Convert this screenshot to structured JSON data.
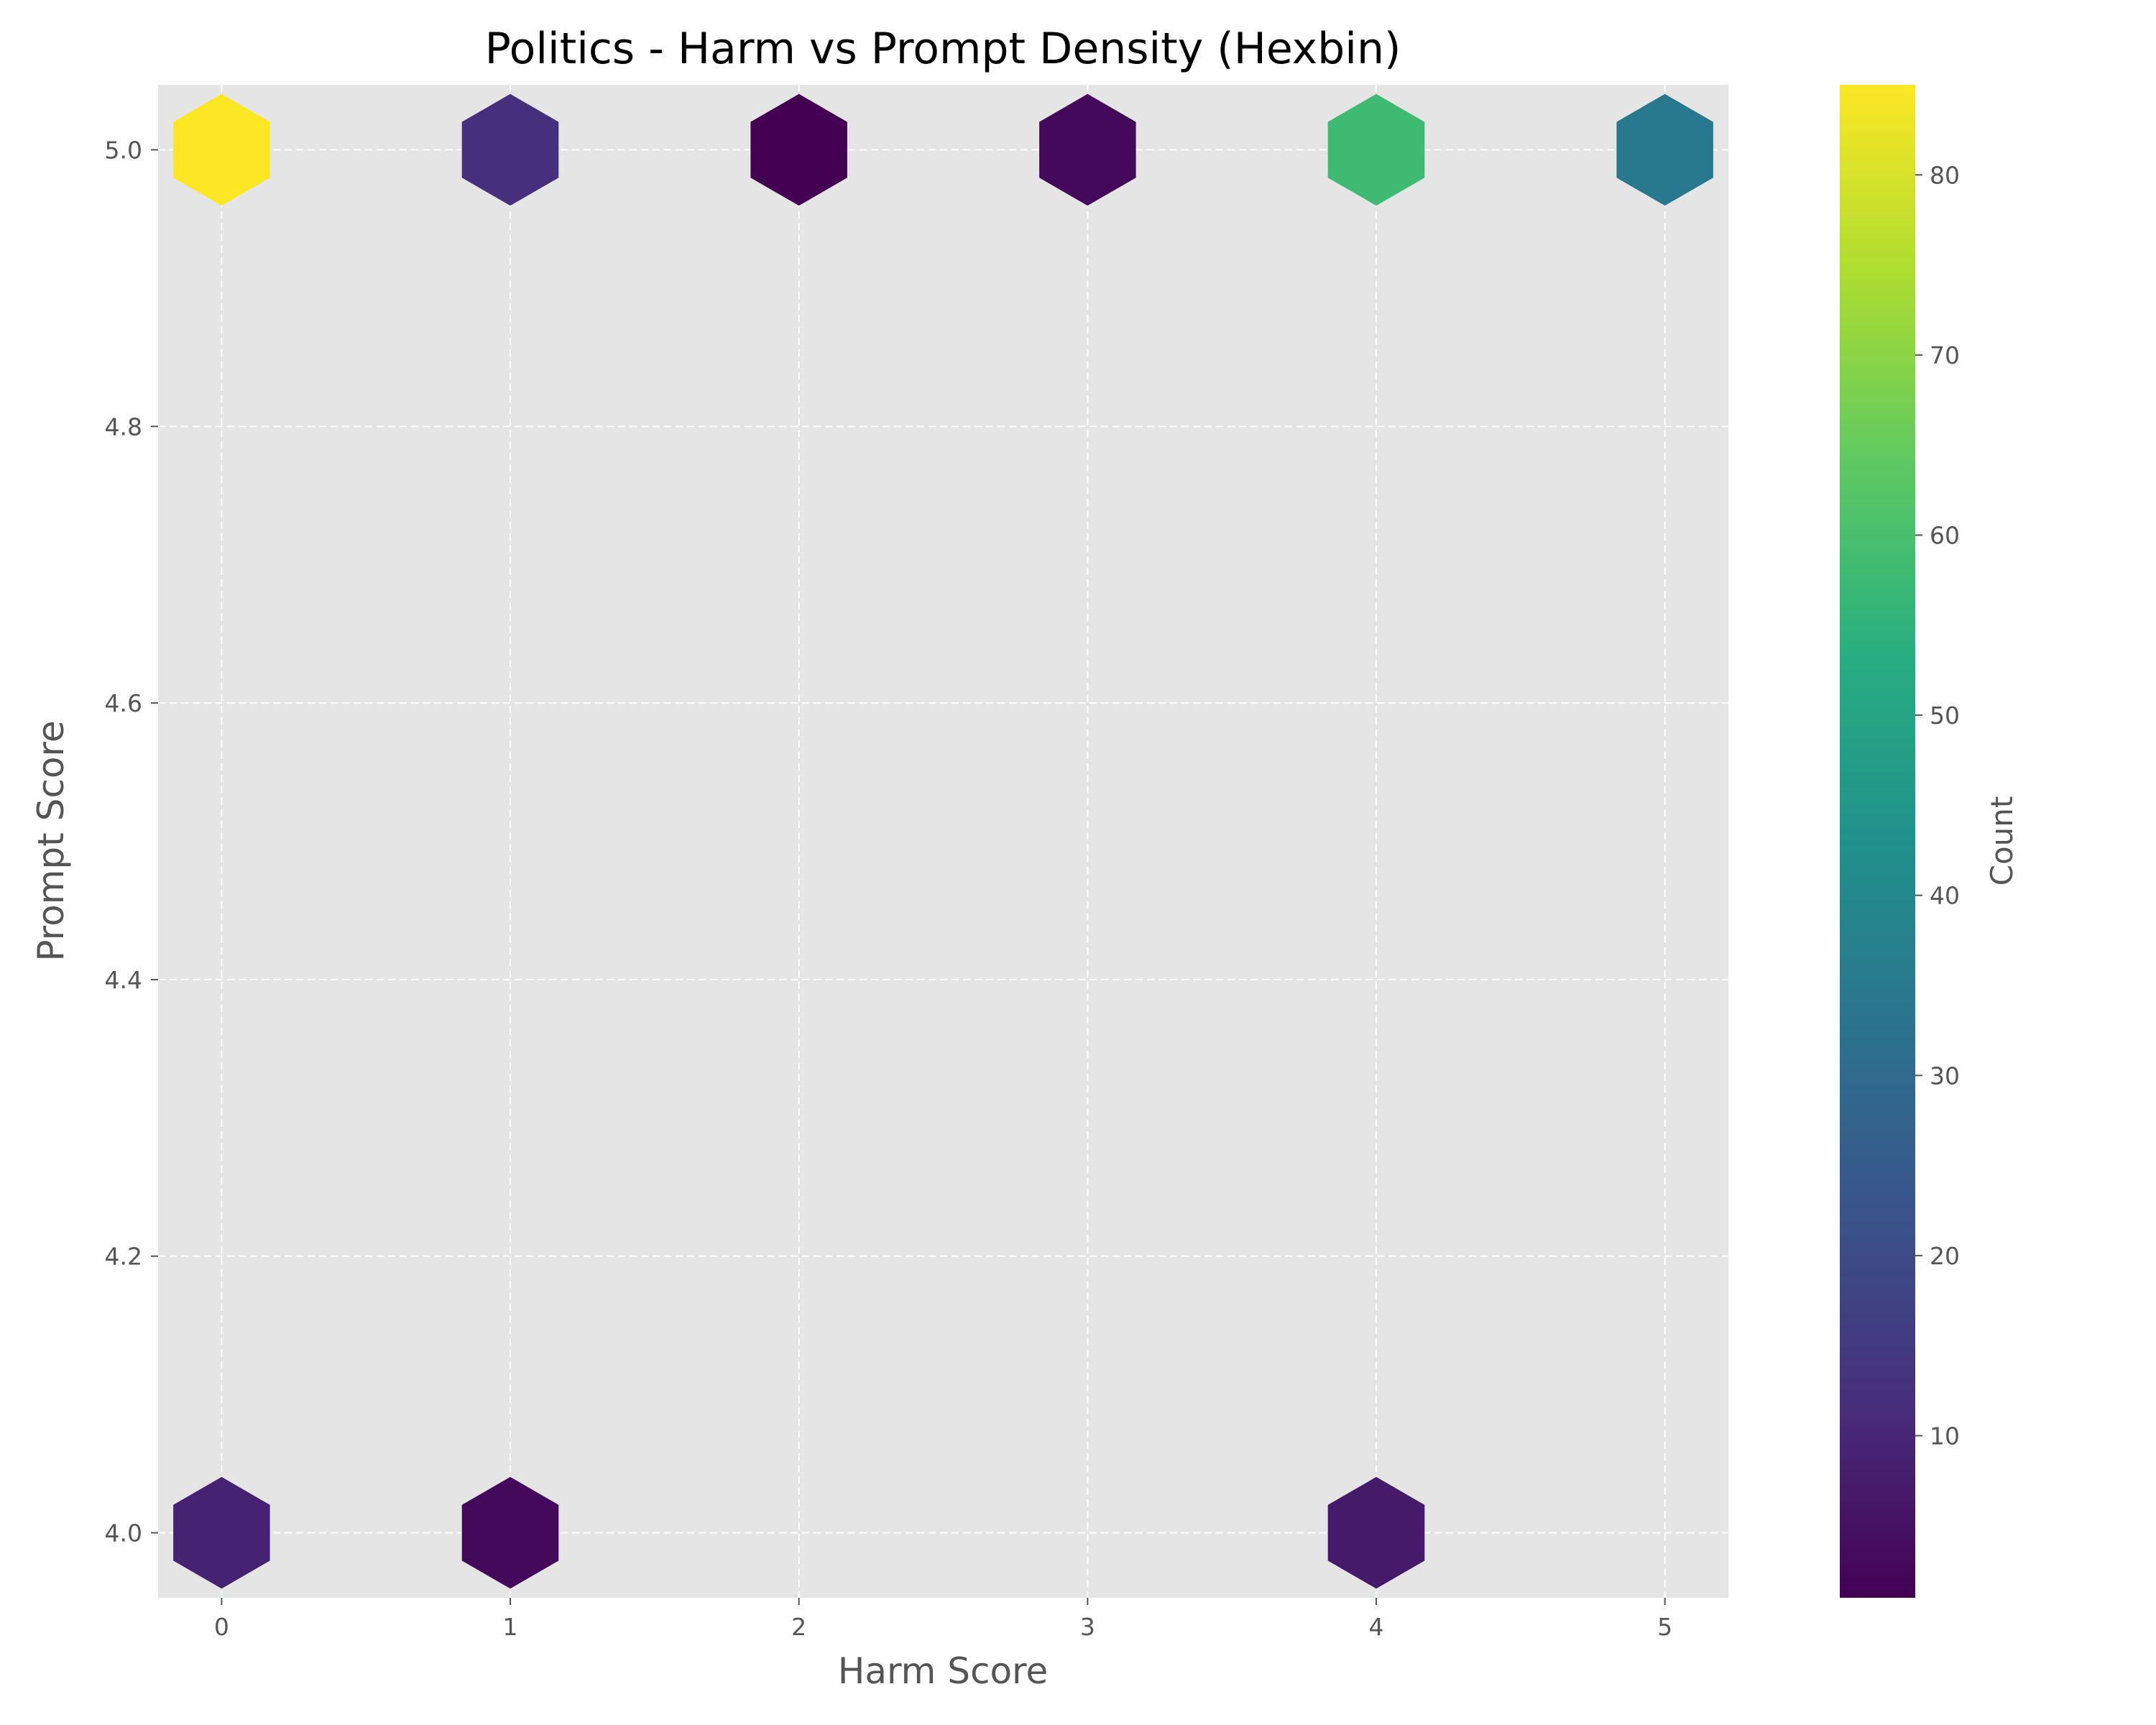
{
  "chart_data": {
    "type": "hexbin",
    "title": "Politics - Harm vs Prompt Density (Hexbin)",
    "xlabel": "Harm Score",
    "ylabel": "Prompt Score",
    "xlim": [
      -0.22,
      5.22
    ],
    "ylim": [
      3.953,
      5.047
    ],
    "x_ticks": [
      "0",
      "1",
      "2",
      "3",
      "4",
      "5"
    ],
    "y_ticks": [
      "4.0",
      "4.2",
      "4.4",
      "4.6",
      "4.8",
      "5.0"
    ],
    "grid": true,
    "colormap": "viridis",
    "colorbar": {
      "label": "Count",
      "range": [
        1,
        85
      ],
      "ticks": [
        "10",
        "20",
        "30",
        "40",
        "50",
        "60",
        "70",
        "80"
      ]
    },
    "points": [
      {
        "x": 0,
        "y": 5.0,
        "count": 85
      },
      {
        "x": 1,
        "y": 5.0,
        "count": 12
      },
      {
        "x": 2,
        "y": 5.0,
        "count": 1
      },
      {
        "x": 3,
        "y": 5.0,
        "count": 3
      },
      {
        "x": 4,
        "y": 5.0,
        "count": 58
      },
      {
        "x": 5,
        "y": 5.0,
        "count": 35
      },
      {
        "x": 0,
        "y": 4.0,
        "count": 9
      },
      {
        "x": 1,
        "y": 4.0,
        "count": 3
      },
      {
        "x": 4,
        "y": 4.0,
        "count": 7
      }
    ]
  }
}
